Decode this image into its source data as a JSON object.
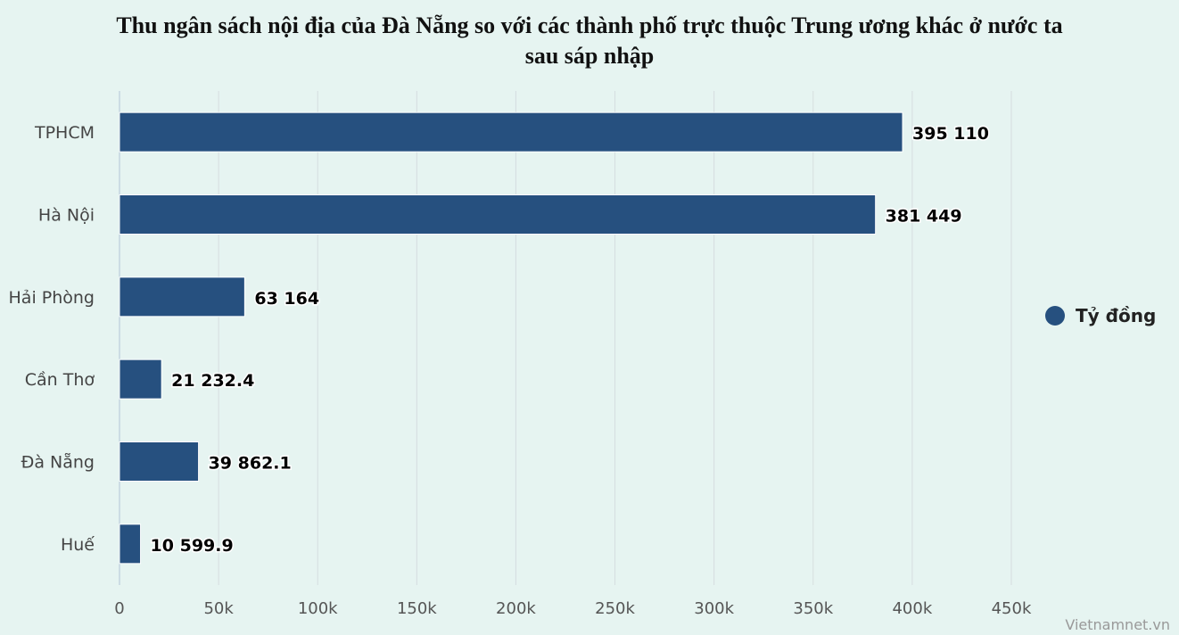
{
  "chart_data": {
    "type": "bar",
    "orientation": "horizontal",
    "title_lines": [
      "Thu ngân sách nội địa của Đà Nẵng so với các thành phố trực thuộc Trung ương khác ở nước ta",
      "sau sáp nhập"
    ],
    "categories": [
      "TPHCM",
      "Hà Nội",
      "Hải Phòng",
      "Cần Thơ",
      "Đà Nẵng",
      "Huế"
    ],
    "series": [
      {
        "name": "Tỷ đồng",
        "values": [
          395110,
          381449,
          63164,
          21232.4,
          39862.1,
          10599.9
        ],
        "value_labels": [
          "395 110",
          "381 449",
          "63 164",
          "21 232.4",
          "39 862.1",
          "10 599.9"
        ],
        "color": "#26507f"
      }
    ],
    "xlim": [
      0,
      450000
    ],
    "xticks": [
      0,
      50000,
      100000,
      150000,
      200000,
      250000,
      300000,
      350000,
      400000,
      450000
    ],
    "xtick_labels": [
      "0",
      "50k",
      "100k",
      "150k",
      "200k",
      "250k",
      "300k",
      "350k",
      "400k",
      "450k"
    ],
    "grid": true,
    "legend_position": "right"
  },
  "credit": "Vietnamnet.vn"
}
